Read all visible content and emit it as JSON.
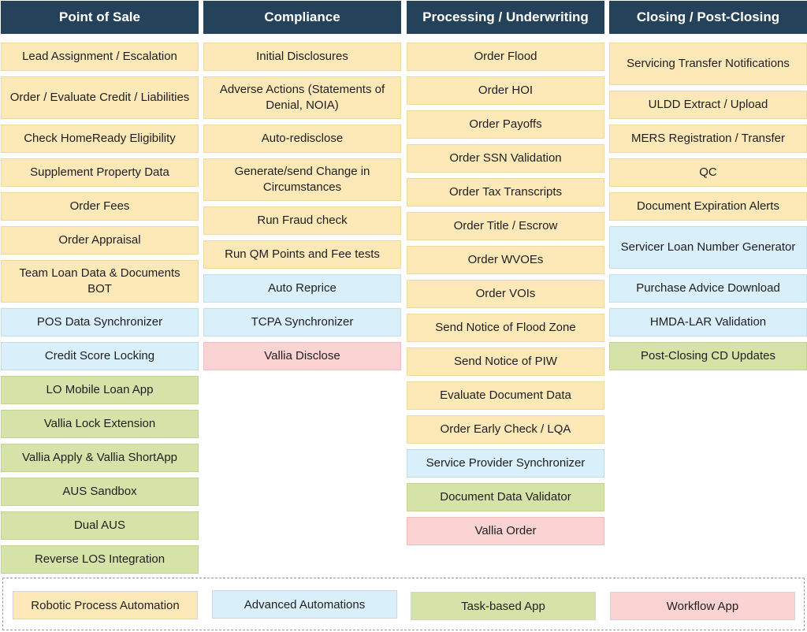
{
  "categories": {
    "rpa": {
      "label": "Robotic Process Automation",
      "color": "#fde9b8"
    },
    "adv": {
      "label": "Advanced Automations",
      "color": "#d9effa"
    },
    "task": {
      "label": "Task-based App",
      "color": "#d6e3a8"
    },
    "wf": {
      "label": "Workflow App",
      "color": "#fbd3d3"
    }
  },
  "columns": [
    {
      "title": "Point of Sale",
      "items": [
        {
          "label": "Lead Assignment / Escalation",
          "cat": "rpa"
        },
        {
          "label": "Order / Evaluate Credit / Liabilities",
          "cat": "rpa"
        },
        {
          "label": "Check HomeReady Eligibility",
          "cat": "rpa"
        },
        {
          "label": "Supplement Property Data",
          "cat": "rpa"
        },
        {
          "label": "Order Fees",
          "cat": "rpa"
        },
        {
          "label": "Order Appraisal",
          "cat": "rpa"
        },
        {
          "label": "Team Loan Data & Documents BOT",
          "cat": "rpa"
        },
        {
          "label": "POS Data Synchronizer",
          "cat": "adv"
        },
        {
          "label": "Credit Score Locking",
          "cat": "adv"
        },
        {
          "label": "LO Mobile Loan App",
          "cat": "task"
        },
        {
          "label": "Vallia Lock Extension",
          "cat": "task"
        },
        {
          "label": "Vallia Apply & Vallia ShortApp",
          "cat": "task"
        },
        {
          "label": "AUS Sandbox",
          "cat": "task"
        },
        {
          "label": "Dual AUS",
          "cat": "task"
        },
        {
          "label": "Reverse LOS Integration",
          "cat": "task"
        }
      ]
    },
    {
      "title": "Compliance",
      "items": [
        {
          "label": "Initial Disclosures",
          "cat": "rpa"
        },
        {
          "label": "Adverse Actions (Statements of Denial, NOIA)",
          "cat": "rpa"
        },
        {
          "label": "Auto-redisclose",
          "cat": "rpa"
        },
        {
          "label": "Generate/send Change in Circumstances",
          "cat": "rpa"
        },
        {
          "label": "Run Fraud check",
          "cat": "rpa"
        },
        {
          "label": "Run QM Points and Fee tests",
          "cat": "rpa"
        },
        {
          "label": "Auto Reprice",
          "cat": "adv"
        },
        {
          "label": "TCPA Synchronizer",
          "cat": "adv"
        },
        {
          "label": "Vallia Disclose",
          "cat": "wf"
        }
      ]
    },
    {
      "title": "Processing / Underwriting",
      "items": [
        {
          "label": "Order Flood",
          "cat": "rpa"
        },
        {
          "label": "Order HOI",
          "cat": "rpa"
        },
        {
          "label": "Order Payoffs",
          "cat": "rpa"
        },
        {
          "label": "Order SSN Validation",
          "cat": "rpa"
        },
        {
          "label": "Order Tax Transcripts",
          "cat": "rpa"
        },
        {
          "label": "Order Title / Escrow",
          "cat": "rpa"
        },
        {
          "label": "Order WVOEs",
          "cat": "rpa"
        },
        {
          "label": "Order VOIs",
          "cat": "rpa"
        },
        {
          "label": "Send Notice of Flood Zone",
          "cat": "rpa"
        },
        {
          "label": "Send Notice of PIW",
          "cat": "rpa"
        },
        {
          "label": "Evaluate Document Data",
          "cat": "rpa"
        },
        {
          "label": "Order Early Check / LQA",
          "cat": "rpa"
        },
        {
          "label": "Service Provider Synchronizer",
          "cat": "adv"
        },
        {
          "label": "Document Data Validator",
          "cat": "task"
        },
        {
          "label": "Vallia Order",
          "cat": "wf"
        }
      ]
    },
    {
      "title": "Closing / Post-Closing",
      "items": [
        {
          "label": "Servicing Transfer Notifications",
          "cat": "rpa"
        },
        {
          "label": "ULDD Extract / Upload",
          "cat": "rpa"
        },
        {
          "label": "MERS Registration / Transfer",
          "cat": "rpa"
        },
        {
          "label": "QC",
          "cat": "rpa"
        },
        {
          "label": "Document Expiration Alerts",
          "cat": "rpa"
        },
        {
          "label": "Servicer Loan Number Generator",
          "cat": "adv"
        },
        {
          "label": "Purchase Advice Download",
          "cat": "adv"
        },
        {
          "label": "HMDA-LAR Validation",
          "cat": "adv"
        },
        {
          "label": "Post-Closing CD Updates",
          "cat": "task"
        }
      ]
    }
  ]
}
